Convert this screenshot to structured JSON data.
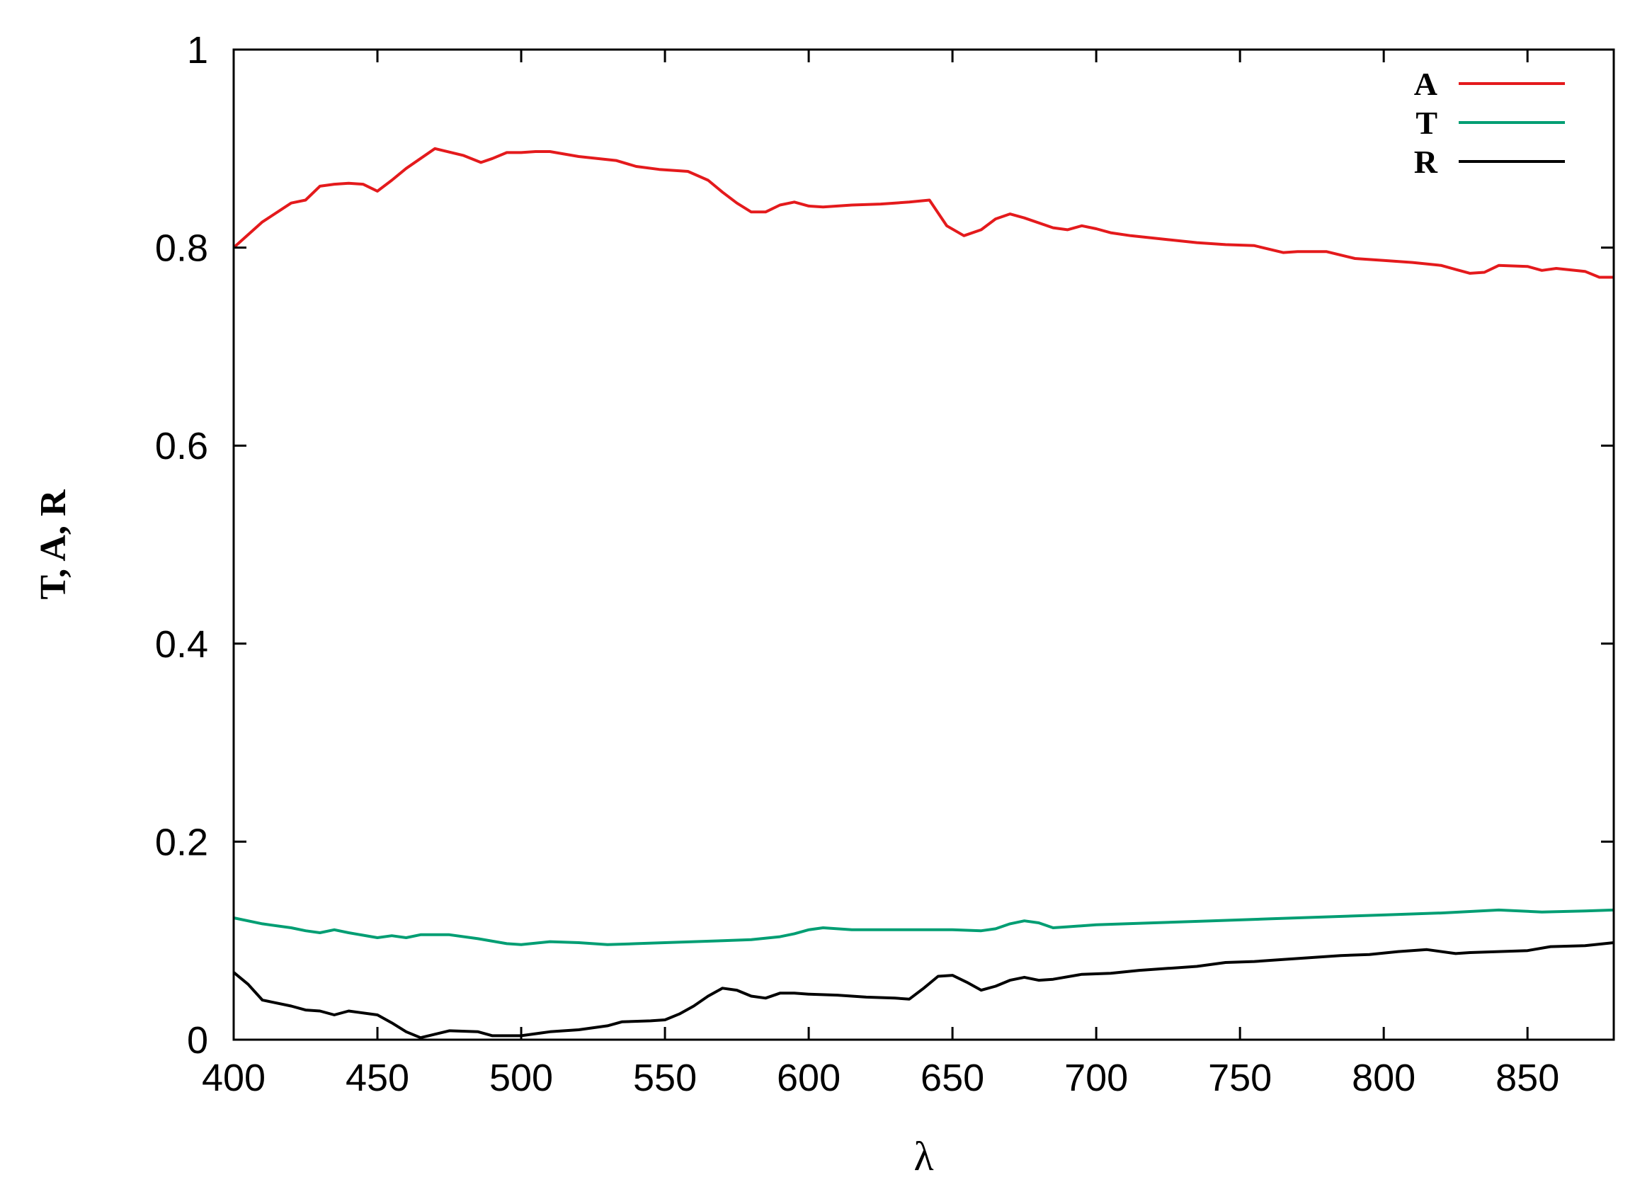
{
  "chart_data": {
    "type": "line",
    "title": "",
    "xlabel": "λ",
    "ylabel": "T, A, R",
    "xlim": [
      400,
      880
    ],
    "ylim": [
      0,
      1
    ],
    "x_ticks": [
      "400",
      "450",
      "500",
      "550",
      "600",
      "650",
      "700",
      "750",
      "800",
      "850"
    ],
    "y_ticks": [
      "0",
      "0.2",
      "0.4",
      "0.6",
      "0.8",
      "1"
    ],
    "grid": false,
    "legend_position": "top-right",
    "series": [
      {
        "name": "A",
        "color": "#e41a1c",
        "points": [
          [
            400,
            0.8
          ],
          [
            410,
            0.826
          ],
          [
            420,
            0.845
          ],
          [
            425,
            0.848
          ],
          [
            430,
            0.862
          ],
          [
            435,
            0.864
          ],
          [
            440,
            0.865
          ],
          [
            445,
            0.864
          ],
          [
            450,
            0.857
          ],
          [
            455,
            0.868
          ],
          [
            460,
            0.88
          ],
          [
            470,
            0.9
          ],
          [
            480,
            0.893
          ],
          [
            486,
            0.886
          ],
          [
            490,
            0.89
          ],
          [
            495,
            0.896
          ],
          [
            500,
            0.896
          ],
          [
            505,
            0.897
          ],
          [
            510,
            0.897
          ],
          [
            520,
            0.892
          ],
          [
            533,
            0.888
          ],
          [
            540,
            0.882
          ],
          [
            548,
            0.879
          ],
          [
            558,
            0.877
          ],
          [
            565,
            0.868
          ],
          [
            570,
            0.856
          ],
          [
            575,
            0.845
          ],
          [
            580,
            0.836
          ],
          [
            585,
            0.836
          ],
          [
            590,
            0.843
          ],
          [
            595,
            0.846
          ],
          [
            600,
            0.842
          ],
          [
            605,
            0.841
          ],
          [
            610,
            0.842
          ],
          [
            615,
            0.843
          ],
          [
            625,
            0.844
          ],
          [
            630,
            0.845
          ],
          [
            635,
            0.846
          ],
          [
            642,
            0.848
          ],
          [
            648,
            0.822
          ],
          [
            654,
            0.812
          ],
          [
            660,
            0.818
          ],
          [
            665,
            0.829
          ],
          [
            670,
            0.834
          ],
          [
            675,
            0.83
          ],
          [
            685,
            0.82
          ],
          [
            690,
            0.818
          ],
          [
            695,
            0.822
          ],
          [
            700,
            0.819
          ],
          [
            705,
            0.815
          ],
          [
            712,
            0.812
          ],
          [
            725,
            0.808
          ],
          [
            735,
            0.805
          ],
          [
            745,
            0.803
          ],
          [
            755,
            0.802
          ],
          [
            765,
            0.795
          ],
          [
            770,
            0.796
          ],
          [
            780,
            0.796
          ],
          [
            790,
            0.789
          ],
          [
            800,
            0.787
          ],
          [
            810,
            0.785
          ],
          [
            820,
            0.782
          ],
          [
            825,
            0.778
          ],
          [
            830,
            0.774
          ],
          [
            835,
            0.775
          ],
          [
            840,
            0.782
          ],
          [
            850,
            0.781
          ],
          [
            855,
            0.777
          ],
          [
            860,
            0.779
          ],
          [
            870,
            0.776
          ],
          [
            875,
            0.77
          ],
          [
            880,
            0.77
          ]
        ]
      },
      {
        "name": "T",
        "color": "#009e73",
        "points": [
          [
            400,
            0.123
          ],
          [
            410,
            0.117
          ],
          [
            420,
            0.113
          ],
          [
            425,
            0.11
          ],
          [
            430,
            0.108
          ],
          [
            435,
            0.111
          ],
          [
            440,
            0.108
          ],
          [
            450,
            0.103
          ],
          [
            455,
            0.105
          ],
          [
            460,
            0.103
          ],
          [
            465,
            0.106
          ],
          [
            475,
            0.106
          ],
          [
            485,
            0.102
          ],
          [
            495,
            0.097
          ],
          [
            500,
            0.096
          ],
          [
            510,
            0.099
          ],
          [
            520,
            0.098
          ],
          [
            530,
            0.096
          ],
          [
            540,
            0.097
          ],
          [
            550,
            0.098
          ],
          [
            560,
            0.099
          ],
          [
            570,
            0.1
          ],
          [
            580,
            0.101
          ],
          [
            590,
            0.104
          ],
          [
            595,
            0.107
          ],
          [
            600,
            0.111
          ],
          [
            605,
            0.113
          ],
          [
            615,
            0.111
          ],
          [
            625,
            0.111
          ],
          [
            635,
            0.111
          ],
          [
            650,
            0.111
          ],
          [
            660,
            0.11
          ],
          [
            665,
            0.112
          ],
          [
            670,
            0.117
          ],
          [
            675,
            0.12
          ],
          [
            680,
            0.118
          ],
          [
            685,
            0.113
          ],
          [
            690,
            0.114
          ],
          [
            700,
            0.116
          ],
          [
            720,
            0.118
          ],
          [
            740,
            0.12
          ],
          [
            760,
            0.122
          ],
          [
            780,
            0.124
          ],
          [
            800,
            0.126
          ],
          [
            820,
            0.128
          ],
          [
            840,
            0.131
          ],
          [
            855,
            0.129
          ],
          [
            870,
            0.13
          ],
          [
            880,
            0.131
          ]
        ]
      },
      {
        "name": "R",
        "color": "#000000",
        "points": [
          [
            400,
            0.068
          ],
          [
            405,
            0.056
          ],
          [
            410,
            0.04
          ],
          [
            420,
            0.034
          ],
          [
            425,
            0.03
          ],
          [
            430,
            0.029
          ],
          [
            435,
            0.025
          ],
          [
            440,
            0.029
          ],
          [
            450,
            0.025
          ],
          [
            455,
            0.017
          ],
          [
            460,
            0.008
          ],
          [
            465,
            0.002
          ],
          [
            475,
            0.009
          ],
          [
            485,
            0.008
          ],
          [
            490,
            0.004
          ],
          [
            500,
            0.004
          ],
          [
            510,
            0.008
          ],
          [
            520,
            0.01
          ],
          [
            530,
            0.014
          ],
          [
            535,
            0.018
          ],
          [
            545,
            0.019
          ],
          [
            550,
            0.02
          ],
          [
            555,
            0.026
          ],
          [
            560,
            0.034
          ],
          [
            565,
            0.044
          ],
          [
            570,
            0.052
          ],
          [
            575,
            0.05
          ],
          [
            580,
            0.044
          ],
          [
            585,
            0.042
          ],
          [
            590,
            0.047
          ],
          [
            595,
            0.047
          ],
          [
            600,
            0.046
          ],
          [
            610,
            0.045
          ],
          [
            620,
            0.043
          ],
          [
            630,
            0.042
          ],
          [
            635,
            0.041
          ],
          [
            640,
            0.052
          ],
          [
            645,
            0.064
          ],
          [
            650,
            0.065
          ],
          [
            655,
            0.058
          ],
          [
            660,
            0.05
          ],
          [
            665,
            0.054
          ],
          [
            670,
            0.06
          ],
          [
            675,
            0.063
          ],
          [
            680,
            0.06
          ],
          [
            685,
            0.061
          ],
          [
            695,
            0.066
          ],
          [
            705,
            0.067
          ],
          [
            715,
            0.07
          ],
          [
            725,
            0.072
          ],
          [
            735,
            0.074
          ],
          [
            745,
            0.078
          ],
          [
            755,
            0.079
          ],
          [
            765,
            0.081
          ],
          [
            775,
            0.083
          ],
          [
            785,
            0.085
          ],
          [
            795,
            0.086
          ],
          [
            805,
            0.089
          ],
          [
            815,
            0.091
          ],
          [
            825,
            0.087
          ],
          [
            830,
            0.088
          ],
          [
            840,
            0.089
          ],
          [
            850,
            0.09
          ],
          [
            858,
            0.094
          ],
          [
            870,
            0.095
          ],
          [
            880,
            0.098
          ]
        ]
      }
    ]
  }
}
